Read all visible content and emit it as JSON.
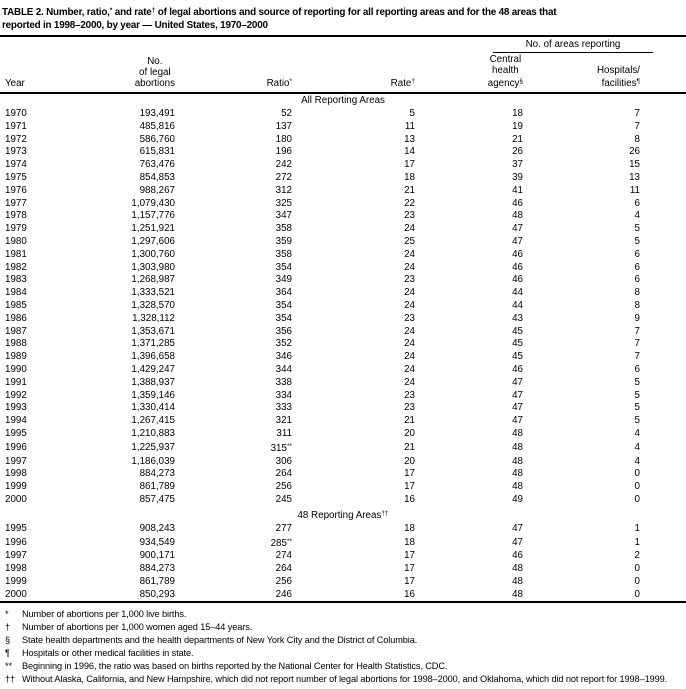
{
  "page": {
    "background_color": "#ffffff",
    "text_color": "#000000",
    "rule_color": "#000000"
  },
  "title": {
    "l1_p1": "TABLE 2. Number, ratio,",
    "l1_s1": "*",
    "l1_p2": " and rate",
    "l1_s2": "†",
    "l1_p3": " of legal abortions and source of reporting for all reporting areas and for the 48 areas that",
    "l2": "reported in 1998–2000, by year — United States, 1970–2000"
  },
  "header": {
    "spanner": "No. of areas reporting",
    "year": "Year",
    "abortions_l1": "No.",
    "abortions_l2": "of legal",
    "abortions_l3": "abortions",
    "ratio": "Ratio",
    "ratio_sup": "*",
    "rate": "Rate",
    "rate_sup": "†",
    "central_l1": "Central",
    "central_l2": "health",
    "central_l3": "agency",
    "central_sup": "§",
    "hospitals_l1": "Hospitals/",
    "hospitals_l2": "facilities",
    "hospitals_sup": "¶"
  },
  "table": {
    "row_format": [
      "year",
      "no_of_legal_abortions",
      "ratio",
      "ratio_sup",
      "rate",
      "central_health_agency",
      "hospitals_facilities"
    ],
    "sections": [
      {
        "heading": "All Reporting Areas",
        "heading_sup": "",
        "rows": [
          [
            "1970",
            "193,491",
            "52",
            "",
            "5",
            "18",
            "7"
          ],
          [
            "1971",
            "485,816",
            "137",
            "",
            "11",
            "19",
            "7"
          ],
          [
            "1972",
            "586,760",
            "180",
            "",
            "13",
            "21",
            "8"
          ],
          [
            "1973",
            "615,831",
            "196",
            "",
            "14",
            "26",
            "26"
          ],
          [
            "1974",
            "763,476",
            "242",
            "",
            "17",
            "37",
            "15"
          ],
          [
            "1975",
            "854,853",
            "272",
            "",
            "18",
            "39",
            "13"
          ],
          [
            "1976",
            "988,267",
            "312",
            "",
            "21",
            "41",
            "11"
          ],
          [
            "1977",
            "1,079,430",
            "325",
            "",
            "22",
            "46",
            "6"
          ],
          [
            "1978",
            "1,157,776",
            "347",
            "",
            "23",
            "48",
            "4"
          ],
          [
            "1979",
            "1,251,921",
            "358",
            "",
            "24",
            "47",
            "5"
          ],
          [
            "1980",
            "1,297,606",
            "359",
            "",
            "25",
            "47",
            "5"
          ],
          [
            "1981",
            "1,300,760",
            "358",
            "",
            "24",
            "46",
            "6"
          ],
          [
            "1982",
            "1,303,980",
            "354",
            "",
            "24",
            "46",
            "6"
          ],
          [
            "1983",
            "1,268,987",
            "349",
            "",
            "23",
            "46",
            "6"
          ],
          [
            "1984",
            "1,333,521",
            "364",
            "",
            "24",
            "44",
            "8"
          ],
          [
            "1985",
            "1,328,570",
            "354",
            "",
            "24",
            "44",
            "8"
          ],
          [
            "1986",
            "1,328,112",
            "354",
            "",
            "23",
            "43",
            "9"
          ],
          [
            "1987",
            "1,353,671",
            "356",
            "",
            "24",
            "45",
            "7"
          ],
          [
            "1988",
            "1,371,285",
            "352",
            "",
            "24",
            "45",
            "7"
          ],
          [
            "1989",
            "1,396,658",
            "346",
            "",
            "24",
            "45",
            "7"
          ],
          [
            "1990",
            "1,429,247",
            "344",
            "",
            "24",
            "46",
            "6"
          ],
          [
            "1991",
            "1,388,937",
            "338",
            "",
            "24",
            "47",
            "5"
          ],
          [
            "1992",
            "1,359,146",
            "334",
            "",
            "23",
            "47",
            "5"
          ],
          [
            "1993",
            "1,330,414",
            "333",
            "",
            "23",
            "47",
            "5"
          ],
          [
            "1994",
            "1,267,415",
            "321",
            "",
            "21",
            "47",
            "5"
          ],
          [
            "1995",
            "1,210,883",
            "311",
            "",
            "20",
            "48",
            "4"
          ],
          [
            "1996",
            "1,225,937",
            "315",
            "**",
            "21",
            "48",
            "4"
          ],
          [
            "1997",
            "1,186,039",
            "306",
            "",
            "20",
            "48",
            "4"
          ],
          [
            "1998",
            "884,273",
            "264",
            "",
            "17",
            "48",
            "0"
          ],
          [
            "1999",
            "861,789",
            "256",
            "",
            "17",
            "48",
            "0"
          ],
          [
            "2000",
            "857,475",
            "245",
            "",
            "16",
            "49",
            "0"
          ]
        ]
      },
      {
        "heading": "48 Reporting Areas",
        "heading_sup": "††",
        "rows": [
          [
            "1995",
            "908,243",
            "277",
            "",
            "18",
            "47",
            "1"
          ],
          [
            "1996",
            "934,549",
            "285",
            "**",
            "18",
            "47",
            "1"
          ],
          [
            "1997",
            "900,171",
            "274",
            "",
            "17",
            "46",
            "2"
          ],
          [
            "1998",
            "884,273",
            "264",
            "",
            "17",
            "48",
            "0"
          ],
          [
            "1999",
            "861,789",
            "256",
            "",
            "17",
            "48",
            "0"
          ],
          [
            "2000",
            "850,293",
            "246",
            "",
            "16",
            "48",
            "0"
          ]
        ]
      }
    ]
  },
  "footnotes": [
    {
      "marker": "*",
      "text": "Number of abortions per 1,000 live births."
    },
    {
      "marker": "†",
      "text": "Number of abortions per 1,000 women aged 15–44 years."
    },
    {
      "marker": "§",
      "text": "State health departments and the health departments of New York City and the District of Columbia."
    },
    {
      "marker": "¶",
      "text": "Hospitals or other medical facilities in state."
    },
    {
      "marker": "**",
      "text": "Beginning in 1996, the ratio was based on births reported by the National Center for Health Statistics, CDC."
    },
    {
      "marker": "††",
      "text": "Without Alaska, California, and New Hampshire, which did not report number of legal abortions for 1998–2000, and Oklahoma, which did not report for 1998–1999."
    }
  ]
}
